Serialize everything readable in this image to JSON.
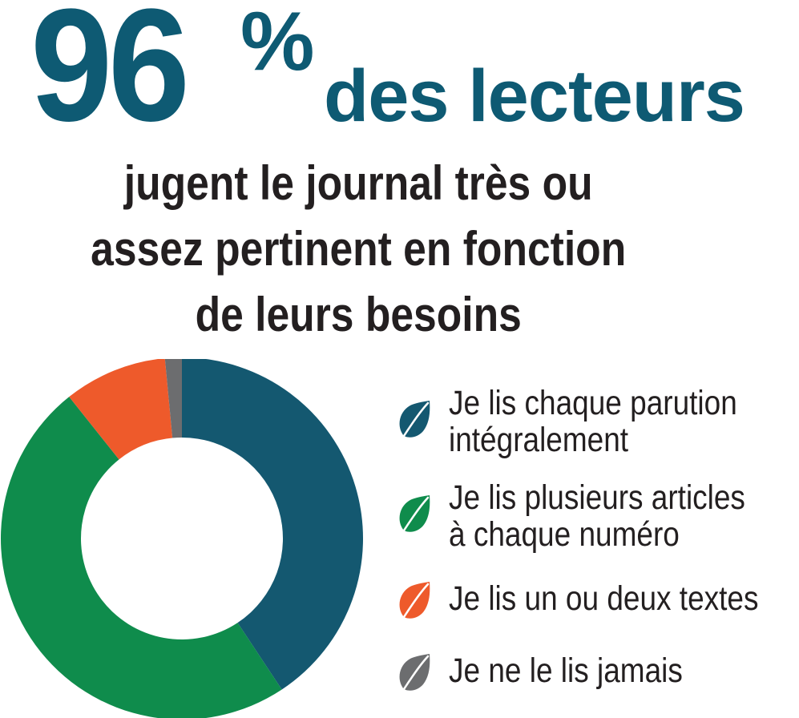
{
  "headline": {
    "number": "96",
    "percent_sign": "%",
    "tail": "des lecteurs"
  },
  "subtitle": {
    "lines": [
      "jugent le journal très ou",
      "assez pertinent en fonction",
      "de leurs besoins"
    ]
  },
  "chart_data": {
    "type": "pie",
    "donut": true,
    "categories": [
      "Je lis chaque parution intégralement",
      "Je lis plusieurs articles à chaque numéro",
      "Je lis un ou deux textes",
      "Je ne le lis jamais"
    ],
    "values": [
      40.7,
      48.6,
      9.2,
      1.5
    ],
    "colors": [
      "#145870",
      "#0f8c4c",
      "#ee5a2b",
      "#6c6d6f"
    ],
    "legend_position": "right"
  },
  "legend": {
    "items": [
      {
        "line1": "Je lis chaque parution",
        "line2": "intégralement",
        "color": "#145870",
        "icon": "leaf-icon"
      },
      {
        "line1": "Je lis plusieurs articles",
        "line2": "à chaque numéro",
        "color": "#0f8c4c",
        "icon": "leaf-icon"
      },
      {
        "line1": "Je lis un ou deux textes",
        "line2": "",
        "color": "#ee5a2b",
        "icon": "leaf-icon"
      },
      {
        "line1": "Je ne le lis jamais",
        "line2": "",
        "color": "#6c6d6f",
        "icon": "leaf-icon"
      }
    ]
  }
}
